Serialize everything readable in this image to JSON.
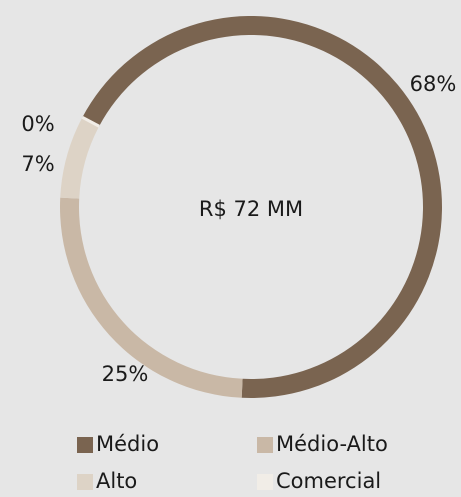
{
  "chart_data": {
    "type": "donut",
    "center_label": "R$ 72 MM",
    "categories": [
      "Médio",
      "Médio-Alto",
      "Alto",
      "Comercial"
    ],
    "values": [
      68,
      25,
      7,
      0
    ],
    "value_labels": [
      "68%",
      "25%",
      "7%",
      "0%"
    ],
    "colors": [
      "#7a6450",
      "#c9b8a6",
      "#ddd3c6",
      "#f1ede7"
    ],
    "legend": "bottom"
  }
}
